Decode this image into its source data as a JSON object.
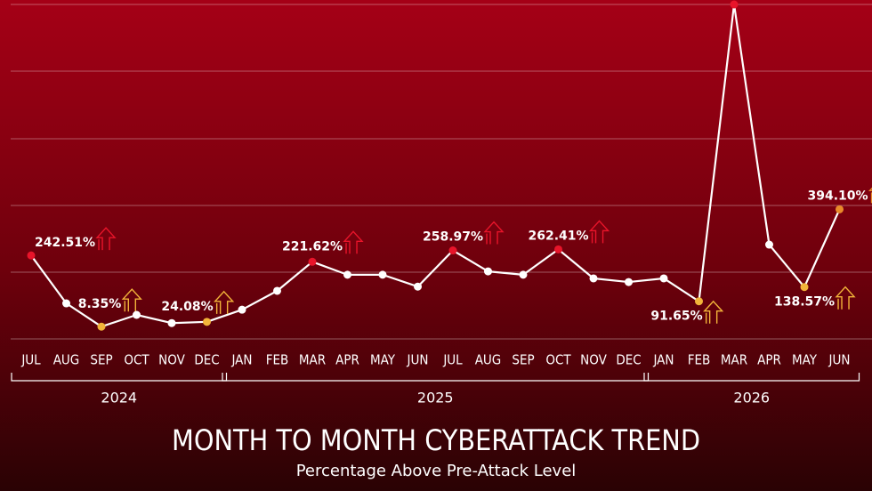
{
  "chart_data": {
    "type": "line",
    "title": "MONTH TO MONTH CYBERATTACK TREND",
    "subtitle": "Percentage Above Pre-Attack Level",
    "groups": [
      {
        "label": "2024",
        "categories": [
          "JUL",
          "AUG",
          "SEP",
          "OCT",
          "NOV",
          "DEC"
        ]
      },
      {
        "label": "2025",
        "categories": [
          "JAN",
          "FEB",
          "MAR",
          "APR",
          "MAY",
          "JUN",
          "JUL",
          "AUG",
          "SEP",
          "OCT",
          "NOV",
          "DEC"
        ]
      },
      {
        "label": "2026",
        "categories": [
          "JAN",
          "FEB",
          "MAR",
          "APR",
          "MAY",
          "JUN"
        ]
      }
    ],
    "series": [
      {
        "color": "#ffffff",
        "values": [
          242.51,
          85,
          8.35,
          47,
          20,
          24.08,
          64,
          126,
          221.62,
          179,
          179,
          140,
          258.97,
          190,
          179,
          262.41,
          167,
          155,
          167,
          91.65,
          1068,
          278,
          138.57,
          394.1
        ],
        "value_labels": [
          "242.51%",
          null,
          "8.35%",
          null,
          null,
          "24.08%",
          null,
          null,
          "221.62%",
          null,
          null,
          null,
          "258.97%",
          null,
          null,
          "262.41%",
          null,
          null,
          null,
          "91.65%",
          null,
          null,
          "138.57%",
          "394.10%"
        ],
        "point_colors": [
          "#e8142a",
          "#ffffff",
          "#f2b43a",
          "#ffffff",
          "#ffffff",
          "#f2b43a",
          "#ffffff",
          "#ffffff",
          "#e8142a",
          "#ffffff",
          "#ffffff",
          "#ffffff",
          "#e8142a",
          "#ffffff",
          "#ffffff",
          "#e8142a",
          "#ffffff",
          "#ffffff",
          "#ffffff",
          "#f2b43a",
          "#e8142a",
          "#ffffff",
          "#f2b43a",
          "#e98a2a"
        ]
      }
    ],
    "ylim": [
      -32,
      1068
    ]
  }
}
